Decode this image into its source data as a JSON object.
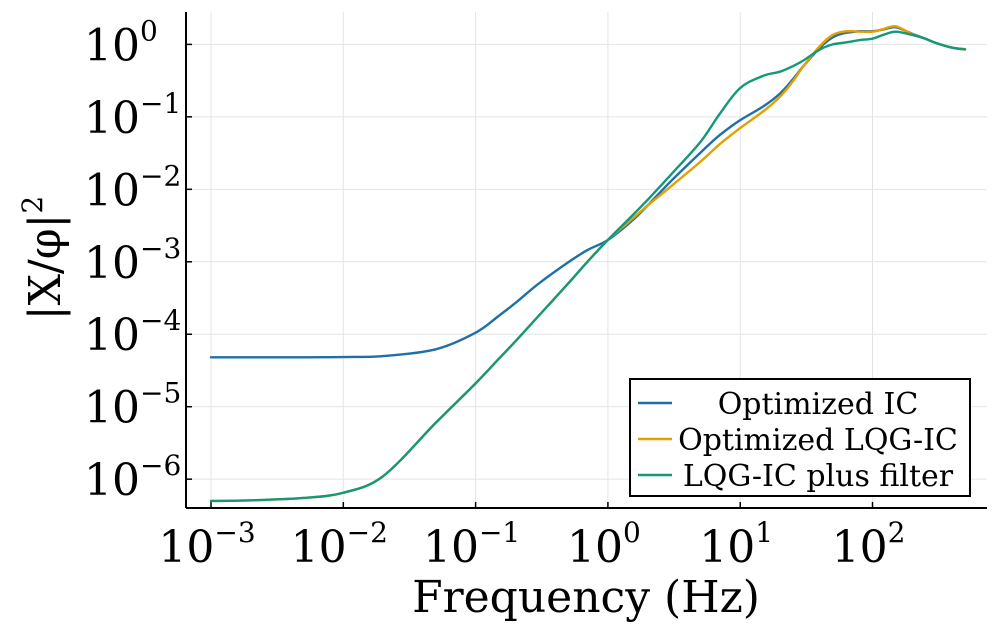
{
  "chart_data": {
    "type": "line",
    "x_scale": "log",
    "y_scale": "log",
    "xlabel": "Frequency (Hz)",
    "ylabel": "|X/φ|",
    "ylabel_sup": "2",
    "xlim": [
      0.001,
      500
    ],
    "ylim": [
      4e-07,
      2.8
    ],
    "grid": true,
    "x_ticks": [
      {
        "value": 0.001,
        "base": "10",
        "exp": "−3"
      },
      {
        "value": 0.01,
        "base": "10",
        "exp": "−2"
      },
      {
        "value": 0.1,
        "base": "10",
        "exp": "−1"
      },
      {
        "value": 1,
        "base": "10",
        "exp": "0"
      },
      {
        "value": 10,
        "base": "10",
        "exp": "1"
      },
      {
        "value": 100,
        "base": "10",
        "exp": "2"
      }
    ],
    "y_ticks": [
      {
        "value": 1,
        "base": "10",
        "exp": "0"
      },
      {
        "value": 0.1,
        "base": "10",
        "exp": "−1"
      },
      {
        "value": 0.01,
        "base": "10",
        "exp": "−2"
      },
      {
        "value": 0.001,
        "base": "10",
        "exp": "−3"
      },
      {
        "value": 0.0001,
        "base": "10",
        "exp": "−4"
      },
      {
        "value": 1e-05,
        "base": "10",
        "exp": "−5"
      },
      {
        "value": 1e-06,
        "base": "10",
        "exp": "−6"
      }
    ],
    "legend_position": "bottom-right",
    "series": [
      {
        "name": "Optimized IC",
        "color": "#1f6fa8",
        "x": [
          0.001,
          0.002,
          0.005,
          0.01,
          0.02,
          0.05,
          0.1,
          0.15,
          0.2,
          0.3,
          0.5,
          0.7,
          1,
          1.5,
          2,
          3,
          5,
          7,
          10,
          15,
          20,
          25,
          30,
          40,
          50,
          60,
          70,
          80,
          100,
          120,
          150,
          200,
          250,
          300,
          400,
          500
        ],
        "y": [
          4.8e-05,
          4.8e-05,
          4.8e-05,
          4.85e-05,
          5e-05,
          6.2e-05,
          0.000105,
          0.00018,
          0.00027,
          0.0005,
          0.00098,
          0.00145,
          0.002,
          0.0036,
          0.006,
          0.013,
          0.032,
          0.056,
          0.09,
          0.14,
          0.21,
          0.33,
          0.5,
          0.9,
          1.25,
          1.42,
          1.48,
          1.52,
          1.52,
          1.6,
          1.72,
          1.4,
          1.2,
          1.05,
          0.9,
          0.85
        ]
      },
      {
        "name": "Optimized LQG-IC",
        "color": "#e69f00",
        "x": [
          0.001,
          0.002,
          0.005,
          0.01,
          0.02,
          0.05,
          0.1,
          0.15,
          0.2,
          0.3,
          0.5,
          0.7,
          1,
          1.5,
          2,
          3,
          5,
          7,
          10,
          15,
          20,
          25,
          30,
          40,
          50,
          60,
          70,
          80,
          100,
          120,
          150,
          200,
          250,
          300,
          400,
          500
        ],
        "y": [
          5e-07,
          5.1e-07,
          5.5e-07,
          6.5e-07,
          1.1e-06,
          6e-06,
          2.1e-05,
          4.6e-05,
          8e-05,
          0.00018,
          0.0005,
          0.001,
          0.002,
          0.0038,
          0.006,
          0.011,
          0.024,
          0.042,
          0.07,
          0.12,
          0.19,
          0.31,
          0.5,
          0.95,
          1.35,
          1.5,
          1.52,
          1.5,
          1.5,
          1.62,
          1.78,
          1.38,
          1.2,
          1.05,
          0.9,
          0.85
        ]
      },
      {
        "name": "LQG-IC plus filter",
        "color": "#13997a",
        "x": [
          0.001,
          0.002,
          0.005,
          0.01,
          0.02,
          0.05,
          0.1,
          0.15,
          0.2,
          0.3,
          0.5,
          0.7,
          1,
          1.5,
          2,
          3,
          5,
          7,
          10,
          15,
          20,
          25,
          30,
          40,
          50,
          60,
          70,
          80,
          100,
          120,
          150,
          200,
          250,
          300,
          400,
          500
        ],
        "y": [
          5e-07,
          5.1e-07,
          5.5e-07,
          6.5e-07,
          1.1e-06,
          6e-06,
          2.1e-05,
          4.6e-05,
          8e-05,
          0.00018,
          0.0005,
          0.001,
          0.002,
          0.0042,
          0.0072,
          0.016,
          0.045,
          0.11,
          0.25,
          0.37,
          0.42,
          0.5,
          0.6,
          0.85,
          1.0,
          1.05,
          1.1,
          1.15,
          1.2,
          1.35,
          1.5,
          1.35,
          1.2,
          1.05,
          0.9,
          0.86
        ]
      }
    ]
  }
}
